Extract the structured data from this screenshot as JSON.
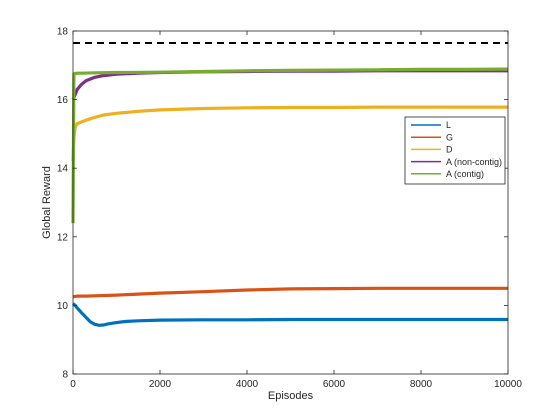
{
  "chart_data": {
    "type": "line",
    "title": "",
    "xlabel": "Episodes",
    "ylabel": "Global Reward",
    "xlim": [
      0,
      10000
    ],
    "ylim": [
      8,
      18
    ],
    "xticks": [
      0,
      2000,
      4000,
      6000,
      8000,
      10000
    ],
    "yticks": [
      8,
      10,
      12,
      14,
      16,
      18
    ],
    "grid": false,
    "legend_position": "right",
    "reference_line": {
      "y": 17.65,
      "style": "dashed",
      "color": "#000000"
    },
    "series": [
      {
        "name": "L",
        "color": "#0072BD",
        "x": [
          0,
          50,
          100,
          150,
          200,
          300,
          400,
          500,
          600,
          700,
          800,
          1000,
          1200,
          1500,
          2000,
          3000,
          4000,
          5000,
          6000,
          7000,
          8000,
          9000,
          10000
        ],
        "y": [
          10.05,
          10.0,
          9.92,
          9.85,
          9.78,
          9.65,
          9.52,
          9.45,
          9.42,
          9.43,
          9.46,
          9.5,
          9.53,
          9.55,
          9.57,
          9.58,
          9.58,
          9.59,
          9.59,
          9.59,
          9.59,
          9.59,
          9.59
        ]
      },
      {
        "name": "G",
        "color": "#D95319",
        "x": [
          0,
          100,
          300,
          500,
          1000,
          1500,
          2000,
          3000,
          4000,
          5000,
          6000,
          7000,
          8000,
          9000,
          10000
        ],
        "y": [
          10.25,
          10.27,
          10.27,
          10.28,
          10.3,
          10.33,
          10.36,
          10.4,
          10.45,
          10.48,
          10.49,
          10.5,
          10.5,
          10.5,
          10.5
        ]
      },
      {
        "name": "D",
        "color": "#EDB120",
        "x": [
          0,
          20,
          50,
          100,
          200,
          300,
          500,
          700,
          1000,
          1500,
          2000,
          3000,
          4000,
          5000,
          6000,
          7000,
          8000,
          9000,
          10000
        ],
        "y": [
          14.2,
          14.9,
          15.2,
          15.3,
          15.35,
          15.4,
          15.48,
          15.55,
          15.6,
          15.66,
          15.7,
          15.74,
          15.76,
          15.77,
          15.77,
          15.78,
          15.78,
          15.78,
          15.78
        ]
      },
      {
        "name": "A (non-contig)",
        "color": "#7E2F8E",
        "x": [
          0,
          50,
          100,
          200,
          300,
          400,
          500,
          700,
          1000,
          1500,
          2000,
          3000,
          4000,
          5000,
          6000,
          7000,
          8000,
          9000,
          10000
        ],
        "y": [
          16.0,
          16.15,
          16.3,
          16.45,
          16.55,
          16.6,
          16.65,
          16.7,
          16.74,
          16.77,
          16.79,
          16.81,
          16.82,
          16.83,
          16.83,
          16.84,
          16.84,
          16.84,
          16.84
        ]
      },
      {
        "name": "A (contig)",
        "color": "#77AC30",
        "x": [
          0,
          20,
          50,
          100,
          200,
          500,
          1000,
          2000,
          3000,
          4000,
          5000,
          6000,
          7000,
          8000,
          9000,
          10000
        ],
        "y": [
          12.4,
          16.75,
          16.76,
          16.77,
          16.77,
          16.78,
          16.79,
          16.8,
          16.82,
          16.84,
          16.85,
          16.86,
          16.87,
          16.88,
          16.88,
          16.89
        ]
      }
    ]
  }
}
